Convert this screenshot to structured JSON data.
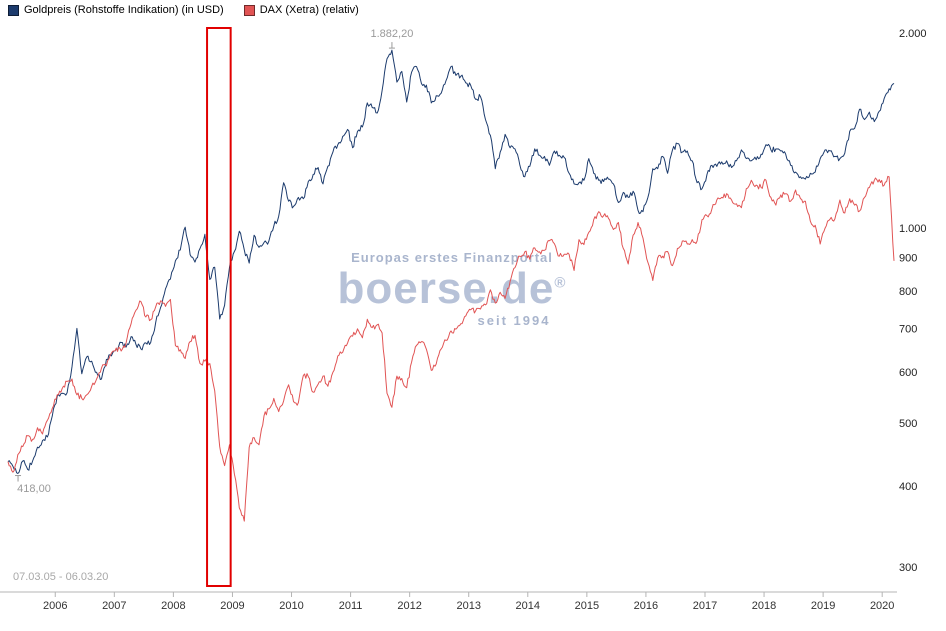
{
  "legend_note": "legend labels bound from chart_data.series names",
  "watermark": {
    "tagline": "Europas erstes Finanzportal",
    "brand": "boerse.de",
    "registered_mark": "®",
    "since": "seit 1994"
  },
  "footer": {
    "date_range": "07.03.05 - 06.03.20"
  },
  "chart_data": {
    "type": "line",
    "title": "",
    "xlabel": "",
    "ylabel": "",
    "legend_position": "top-left",
    "grid": false,
    "y_axis": {
      "scale": "log",
      "side": "right",
      "range": [
        300,
        2000
      ],
      "ticks": [
        2000,
        1000,
        900,
        800,
        700,
        600,
        500,
        400,
        300
      ],
      "tick_labels": [
        "2.000",
        "1.000",
        "900",
        "800",
        "700",
        "600",
        "500",
        "400",
        "300"
      ]
    },
    "x_axis": {
      "range": [
        2005.2,
        2020.2
      ],
      "ticks": [
        2006,
        2007,
        2008,
        2009,
        2010,
        2011,
        2012,
        2013,
        2014,
        2015,
        2016,
        2017,
        2018,
        2019,
        2020
      ]
    },
    "x_start": 2005.2,
    "x_step": 0.0833333,
    "series": [
      {
        "name": "Goldpreis (Rohstoffe Indikation) (in USD)",
        "color": "#1c3b6d",
        "values": [
          436,
          429,
          418,
          437,
          424,
          437,
          459,
          470,
          476,
          513,
          550,
          556,
          557,
          611,
          700,
          596,
          633,
          623,
          599,
          585,
          627,
          635,
          651,
          666,
          655,
          680,
          661,
          651,
          665,
          666,
          715,
          754,
          806,
          834,
          890,
          925,
          1003,
          910,
          886,
          930,
          978,
          833,
          870,
          724,
          760,
          870,
          920,
          989,
          925,
          883,
          975,
          934,
          950,
          955,
          1007,
          1043,
          1175,
          1100,
          1080,
          1115,
          1110,
          1180,
          1210,
          1240,
          1170,
          1246,
          1310,
          1345,
          1385,
          1420,
          1330,
          1410,
          1432,
          1560,
          1535,
          1505,
          1630,
          1825,
          1882,
          1680,
          1745,
          1565,
          1740,
          1775,
          1670,
          1662,
          1560,
          1600,
          1615,
          1690,
          1775,
          1720,
          1715,
          1675,
          1660,
          1580,
          1595,
          1470,
          1390,
          1235,
          1310,
          1395,
          1330,
          1325,
          1250,
          1200,
          1245,
          1325,
          1295,
          1290,
          1250,
          1315,
          1295,
          1285,
          1215,
          1170,
          1175,
          1185,
          1280,
          1215,
          1185,
          1180,
          1190,
          1170,
          1095,
          1135,
          1115,
          1140,
          1065,
          1060,
          1115,
          1235,
          1235,
          1290,
          1215,
          1320,
          1350,
          1310,
          1315,
          1270,
          1175,
          1150,
          1210,
          1250,
          1245,
          1265,
          1270,
          1240,
          1270,
          1320,
          1280,
          1270,
          1275,
          1300,
          1345,
          1320,
          1325,
          1315,
          1300,
          1250,
          1220,
          1200,
          1190,
          1215,
          1220,
          1280,
          1320,
          1315,
          1290,
          1280,
          1305,
          1410,
          1425,
          1525,
          1470,
          1510,
          1460,
          1515,
          1585,
          1640,
          1672
        ]
      },
      {
        "name": "DAX (Xetra) (relativ)",
        "color": "#e15454",
        "values": [
          436,
          420,
          447,
          460,
          478,
          472,
          492,
          481,
          505,
          527,
          553,
          565,
          580,
          585,
          553,
          546,
          553,
          570,
          585,
          608,
          613,
          641,
          653,
          646,
          665,
          712,
          747,
          770,
          729,
          722,
          756,
          772,
          757,
          776,
          659,
          649,
          629,
          668,
          683,
          618,
          623,
          618,
          561,
          460,
          430,
          463,
          417,
          370,
          353,
          459,
          475,
          463,
          513,
          526,
          546,
          521,
          541,
          573,
          540,
          538,
          592,
          590,
          558,
          574,
          591,
          570,
          599,
          635,
          643,
          665,
          681,
          699,
          677,
          723,
          702,
          709,
          689,
          556,
          529,
          591,
          586,
          567,
          621,
          659,
          668,
          650,
          603,
          617,
          651,
          671,
          694,
          698,
          712,
          732,
          748,
          745,
          750,
          761,
          803,
          766,
          796,
          779,
          827,
          869,
          905,
          919,
          895,
          932,
          919,
          924,
          956,
          946,
          905,
          911,
          911,
          860,
          960,
          943,
          985,
          1030,
          1060,
          1045,
          1035,
          995,
          1020,
          930,
          880,
          975,
          1020,
          965,
          885,
          830,
          900,
          905,
          920,
          875,
          930,
          955,
          945,
          960,
          955,
          1030,
          1045,
          1070,
          1105,
          1115,
          1130,
          1105,
          1090,
          1075,
          1150,
          1185,
          1165,
          1155,
          1185,
          1115,
          1085,
          1125,
          1130,
          1100,
          1145,
          1110,
          1100,
          1025,
          1010,
          945,
          1000,
          1032,
          1033,
          1105,
          1055,
          1110,
          1085,
          1062,
          1115,
          1155,
          1185,
          1188,
          1165,
          1200,
          890
        ]
      }
    ],
    "annotations": [
      {
        "text": "1.882,20",
        "x": 2011.7,
        "value": 1882.2,
        "position": "above"
      },
      {
        "text": "418,00",
        "x": 2005.37,
        "value": 418.0,
        "position": "below"
      }
    ],
    "highlight_region": {
      "x_start": 2008.57,
      "x_end": 2008.97,
      "stroke": "#e10000"
    }
  }
}
